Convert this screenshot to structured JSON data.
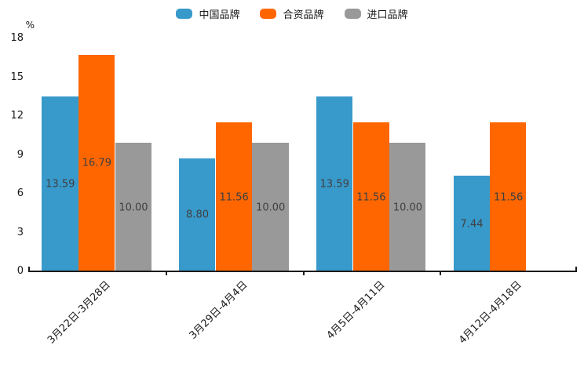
{
  "chart_data": {
    "type": "bar",
    "title": "",
    "ylabel": "%",
    "xlabel": "",
    "categories": [
      "3月22日-3月28日",
      "3月29日-4月4日",
      "4月5日-4月11日",
      "4月12日-4月18日"
    ],
    "series": [
      {
        "name": "中国品牌",
        "key": "china-brand",
        "color": "#3899cb",
        "values": [
          13.59,
          8.8,
          13.59,
          7.44
        ]
      },
      {
        "name": "合资品牌",
        "key": "joint-venture-brand",
        "color": "#ff6600",
        "values": [
          16.79,
          11.56,
          11.56,
          11.56
        ]
      },
      {
        "name": "进口品牌",
        "key": "import-brand",
        "color": "#999999",
        "values": [
          10.0,
          10.0,
          10.0,
          null
        ]
      }
    ],
    "value_labels": [
      [
        "13.59",
        "8.80",
        "13.59",
        "7.44"
      ],
      [
        "16.79",
        "11.56",
        "11.56",
        "11.56"
      ],
      [
        "10.00",
        "10.00",
        "10.00",
        null
      ]
    ],
    "yticks": [
      "0",
      "3",
      "6",
      "9",
      "12",
      "15",
      "18"
    ],
    "ylim": [
      0,
      18
    ],
    "grid": false,
    "legend_position": "top"
  },
  "colors": {
    "axis": "#1a1a1a",
    "value_label_text": "#404040",
    "background": "#ffffff"
  }
}
